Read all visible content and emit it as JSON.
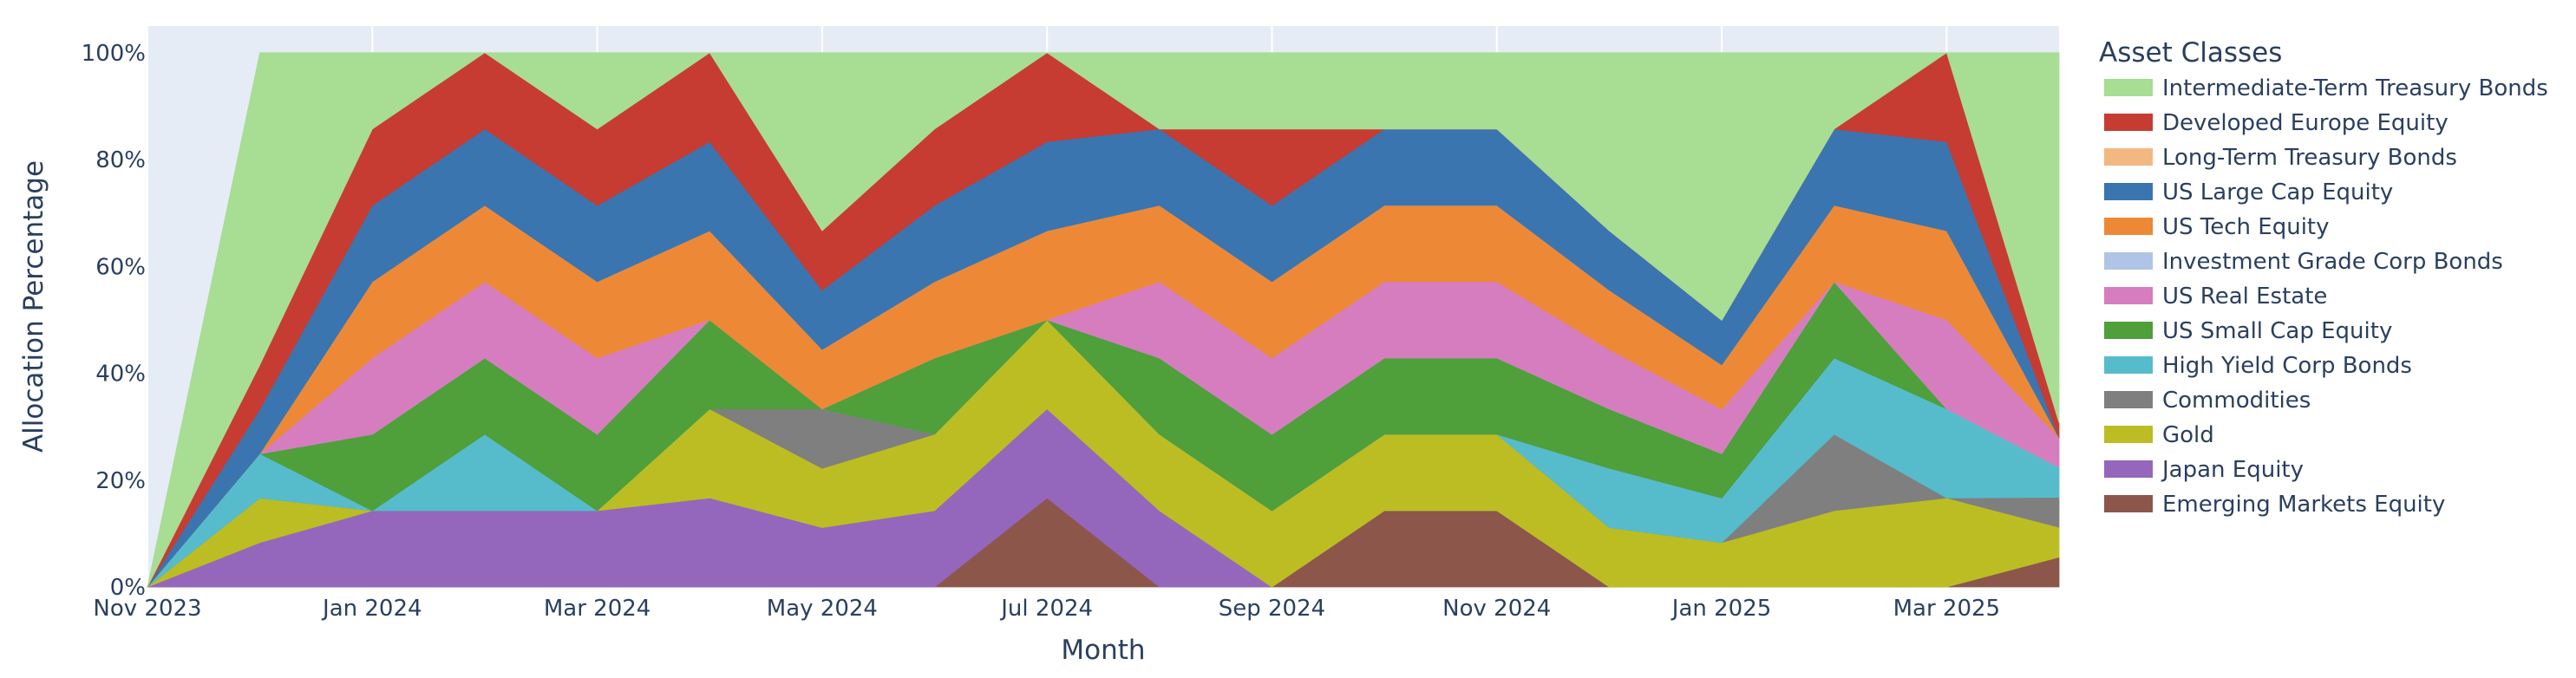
{
  "chart_data": {
    "type": "area",
    "stackmode": "percent",
    "xlabel": "Month",
    "ylabel": "Allocation Percentage",
    "x": [
      "2023-11",
      "2023-12",
      "2024-01",
      "2024-02",
      "2024-03",
      "2024-04",
      "2024-05",
      "2024-06",
      "2024-07",
      "2024-08",
      "2024-09",
      "2024-10",
      "2024-11",
      "2024-12",
      "2025-01",
      "2025-02",
      "2025-03",
      "2025-04"
    ],
    "x_ticks": [
      "2023-11",
      "2024-01",
      "2024-03",
      "2024-05",
      "2024-07",
      "2024-09",
      "2024-11",
      "2025-01",
      "2025-03"
    ],
    "x_tick_labels": [
      "Nov 2023",
      "Jan 2024",
      "Mar 2024",
      "May 2024",
      "Jul 2024",
      "Sep 2024",
      "Nov 2024",
      "Jan 2025",
      "Mar 2025"
    ],
    "y_ticks": [
      0,
      20,
      40,
      60,
      80,
      100
    ],
    "y_tick_labels": [
      "0%",
      "20%",
      "40%",
      "60%",
      "80%",
      "100%"
    ],
    "ylim": [
      0,
      105
    ],
    "grid": true,
    "legend": {
      "title": "Asset Classes",
      "position": "right"
    },
    "series": [
      {
        "name": "Emerging Markets Equity",
        "color": "#8c564b",
        "values": [
          0,
          0,
          0,
          0,
          0,
          0,
          0,
          0,
          16.7,
          0,
          0,
          14.3,
          14.3,
          0,
          0,
          0,
          0,
          5.6
        ]
      },
      {
        "name": "Japan Equity",
        "color": "#9467bd",
        "values": [
          0,
          8.3,
          14.3,
          14.3,
          14.3,
          16.7,
          11.1,
          14.3,
          16.7,
          14.3,
          0,
          0,
          0,
          0,
          0,
          0,
          0,
          0
        ]
      },
      {
        "name": "Gold",
        "color": "#bcbd22",
        "values": [
          0,
          8.3,
          0,
          0,
          0,
          16.7,
          11.1,
          14.3,
          16.7,
          14.3,
          14.3,
          14.3,
          14.3,
          11.1,
          8.3,
          14.3,
          16.7,
          5.6
        ]
      },
      {
        "name": "Commodities",
        "color": "#7f7f7f",
        "values": [
          0,
          0,
          0,
          0,
          0,
          0,
          11.1,
          0,
          0,
          0,
          0,
          0,
          0,
          0,
          0,
          14.3,
          0,
          5.6
        ]
      },
      {
        "name": "High Yield Corp Bonds",
        "color": "#56bccc",
        "values": [
          0,
          8.3,
          0,
          14.3,
          0,
          0,
          0,
          0,
          0,
          0,
          0,
          0,
          0,
          11.1,
          8.3,
          14.3,
          16.7,
          5.6
        ]
      },
      {
        "name": "US Small Cap Equity",
        "color": "#4f9f3b",
        "values": [
          0,
          0,
          14.3,
          14.3,
          14.3,
          16.7,
          0,
          14.3,
          0,
          14.3,
          14.3,
          14.3,
          14.3,
          11.1,
          8.3,
          14.3,
          0,
          0
        ]
      },
      {
        "name": "Investment Grade Corp Bonds",
        "color": "#b0c4e6",
        "values": [
          0,
          0,
          0,
          0,
          0,
          0,
          0,
          0,
          0,
          0,
          0,
          0,
          0,
          0,
          0,
          0,
          0,
          0
        ]
      },
      {
        "name": "US Real Estate",
        "color": "#d67dc0",
        "values": [
          0,
          0,
          14.3,
          14.3,
          14.3,
          0,
          0,
          0,
          0,
          14.3,
          14.3,
          14.3,
          14.3,
          11.1,
          8.3,
          0,
          16.7,
          5.6
        ]
      },
      {
        "name": "US Tech Equity",
        "color": "#ed8936",
        "values": [
          0,
          0,
          14.3,
          14.3,
          14.3,
          16.7,
          11.1,
          14.3,
          16.7,
          14.3,
          14.3,
          14.3,
          14.3,
          11.1,
          8.3,
          14.3,
          16.7,
          0
        ]
      },
      {
        "name": "Long-Term Treasury Bonds",
        "color": "#f2b880",
        "values": [
          0,
          0,
          0,
          0,
          0,
          0,
          0,
          0,
          0,
          0,
          0,
          0,
          0,
          0,
          0,
          0,
          0,
          0
        ]
      },
      {
        "name": "US Large Cap Equity",
        "color": "#3a75b0",
        "values": [
          0,
          8.3,
          14.3,
          14.3,
          14.3,
          16.7,
          11.1,
          14.3,
          16.7,
          14.3,
          14.3,
          14.3,
          14.3,
          11.1,
          8.3,
          14.3,
          16.7,
          0
        ]
      },
      {
        "name": "Developed Europe Equity",
        "color": "#c63c33",
        "values": [
          0,
          8.3,
          14.3,
          14.3,
          14.3,
          16.7,
          11.1,
          14.3,
          16.7,
          0,
          14.3,
          0,
          0,
          0,
          0,
          0,
          16.7,
          2.8
        ]
      },
      {
        "name": "Intermediate-Term Treasury Bonds",
        "color": "#a8dd94",
        "values": [
          0,
          58.3,
          14.3,
          0,
          14.3,
          0,
          33.3,
          14.3,
          0,
          14.3,
          14.3,
          14.3,
          14.3,
          33.3,
          50,
          14.3,
          0,
          69.4
        ]
      }
    ]
  },
  "legend_order": [
    "Intermediate-Term Treasury Bonds",
    "Developed Europe Equity",
    "Long-Term Treasury Bonds",
    "US Large Cap Equity",
    "US Tech Equity",
    "Investment Grade Corp Bonds",
    "US Real Estate",
    "US Small Cap Equity",
    "High Yield Corp Bonds",
    "Commodities",
    "Gold",
    "Japan Equity",
    "Emerging Markets Equity"
  ],
  "colors": {
    "plot_bg": "#e5ecf6",
    "grid": "#ffffff",
    "text": "#2a3f5f"
  }
}
